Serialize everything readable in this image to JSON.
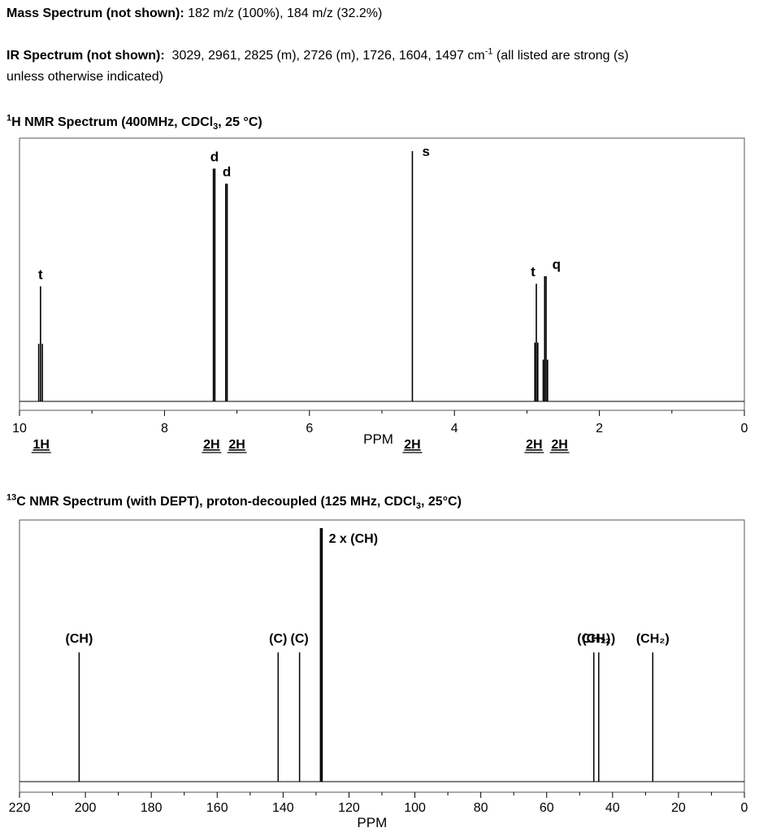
{
  "mass_spectrum": {
    "label": "Mass Spectrum (not shown):",
    "text": "182 m/z (100%), 184 m/z (32.2%)"
  },
  "ir_spectrum": {
    "label": "IR Spectrum (not shown):",
    "text_line1": "3029, 2961, 2825 (m), 2726 (m), 1726, 1604, 1497 cm",
    "unit_sup": "-1",
    "text_line1_end": " (all listed are strong (s)",
    "text_line2": "unless otherwise indicated)"
  },
  "h_nmr": {
    "title_sup": "1",
    "title_main": "H NMR Spectrum (400MHz, CDCl",
    "title_sub": "3",
    "title_end": ", 25 °C)"
  },
  "c_nmr": {
    "title_sup": "13",
    "title_main": "C NMR Spectrum (with DEPT), proton-decoupled (125 MHz, CDCl",
    "title_sub": "3",
    "title_end": ", 25°C)"
  },
  "colors": {
    "line": "#000000",
    "frame": "#555555"
  },
  "chart_data": [
    {
      "type": "line",
      "title": "1H NMR Spectrum (400MHz, CDCl3, 25 °C)",
      "xlabel": "PPM",
      "ylabel": "",
      "xlim": [
        10,
        0
      ],
      "x_ticks": [
        10,
        8,
        6,
        4,
        2,
        0
      ],
      "grid": false,
      "peaks": [
        {
          "ppm": 9.71,
          "rel_height": 0.46,
          "multiplicity": "t",
          "integration": "1H",
          "lines": [
            9.735,
            9.71,
            9.685
          ]
        },
        {
          "ppm": 7.31,
          "rel_height": 0.93,
          "multiplicity": "d",
          "integration": "2H",
          "lines": [
            7.325,
            7.305
          ]
        },
        {
          "ppm": 7.14,
          "rel_height": 0.87,
          "multiplicity": "d",
          "integration": "2H",
          "lines": [
            7.155,
            7.135
          ]
        },
        {
          "ppm": 4.58,
          "rel_height": 1.0,
          "multiplicity": "s",
          "integration": "2H",
          "lines": [
            4.58
          ]
        },
        {
          "ppm": 2.87,
          "rel_height": 0.47,
          "multiplicity": "t",
          "integration": "2H",
          "lines": [
            2.89,
            2.87,
            2.85
          ]
        },
        {
          "ppm": 2.74,
          "rel_height": 0.5,
          "multiplicity": "q",
          "integration": "2H",
          "lines": [
            2.775,
            2.755,
            2.735,
            2.715
          ]
        }
      ],
      "integration_labels": [
        {
          "ppm": 9.7,
          "label": "1H"
        },
        {
          "ppm": 7.35,
          "label": "2H"
        },
        {
          "ppm": 7.0,
          "label": "2H"
        },
        {
          "ppm": 4.58,
          "label": "2H"
        },
        {
          "ppm": 2.9,
          "label": "2H"
        },
        {
          "ppm": 2.55,
          "label": "2H"
        }
      ]
    },
    {
      "type": "line",
      "title": "13C NMR Spectrum (with DEPT), proton-decoupled (125 MHz, CDCl3, 25°C)",
      "xlabel": "PPM",
      "ylabel": "",
      "xlim": [
        220,
        0
      ],
      "x_ticks": [
        220,
        200,
        180,
        160,
        140,
        120,
        100,
        80,
        60,
        40,
        20,
        0
      ],
      "grid": false,
      "peaks": [
        {
          "ppm": 201.9,
          "rel_height": 0.51,
          "label": "(CH)"
        },
        {
          "ppm": 141.5,
          "rel_height": 0.51,
          "label": "(C)"
        },
        {
          "ppm": 135.0,
          "rel_height": 0.51,
          "label": "(C)"
        },
        {
          "ppm": 128.6,
          "rel_height": 1.0,
          "label": "2 x (CH)"
        },
        {
          "ppm": 128.2,
          "rel_height": 1.0,
          "label": ""
        },
        {
          "ppm": 45.7,
          "rel_height": 0.51,
          "label": "(CH₂)"
        },
        {
          "ppm": 44.2,
          "rel_height": 0.51,
          "label": "(CH₂)"
        },
        {
          "ppm": 27.8,
          "rel_height": 0.51,
          "label": "(CH₂)"
        }
      ]
    }
  ]
}
